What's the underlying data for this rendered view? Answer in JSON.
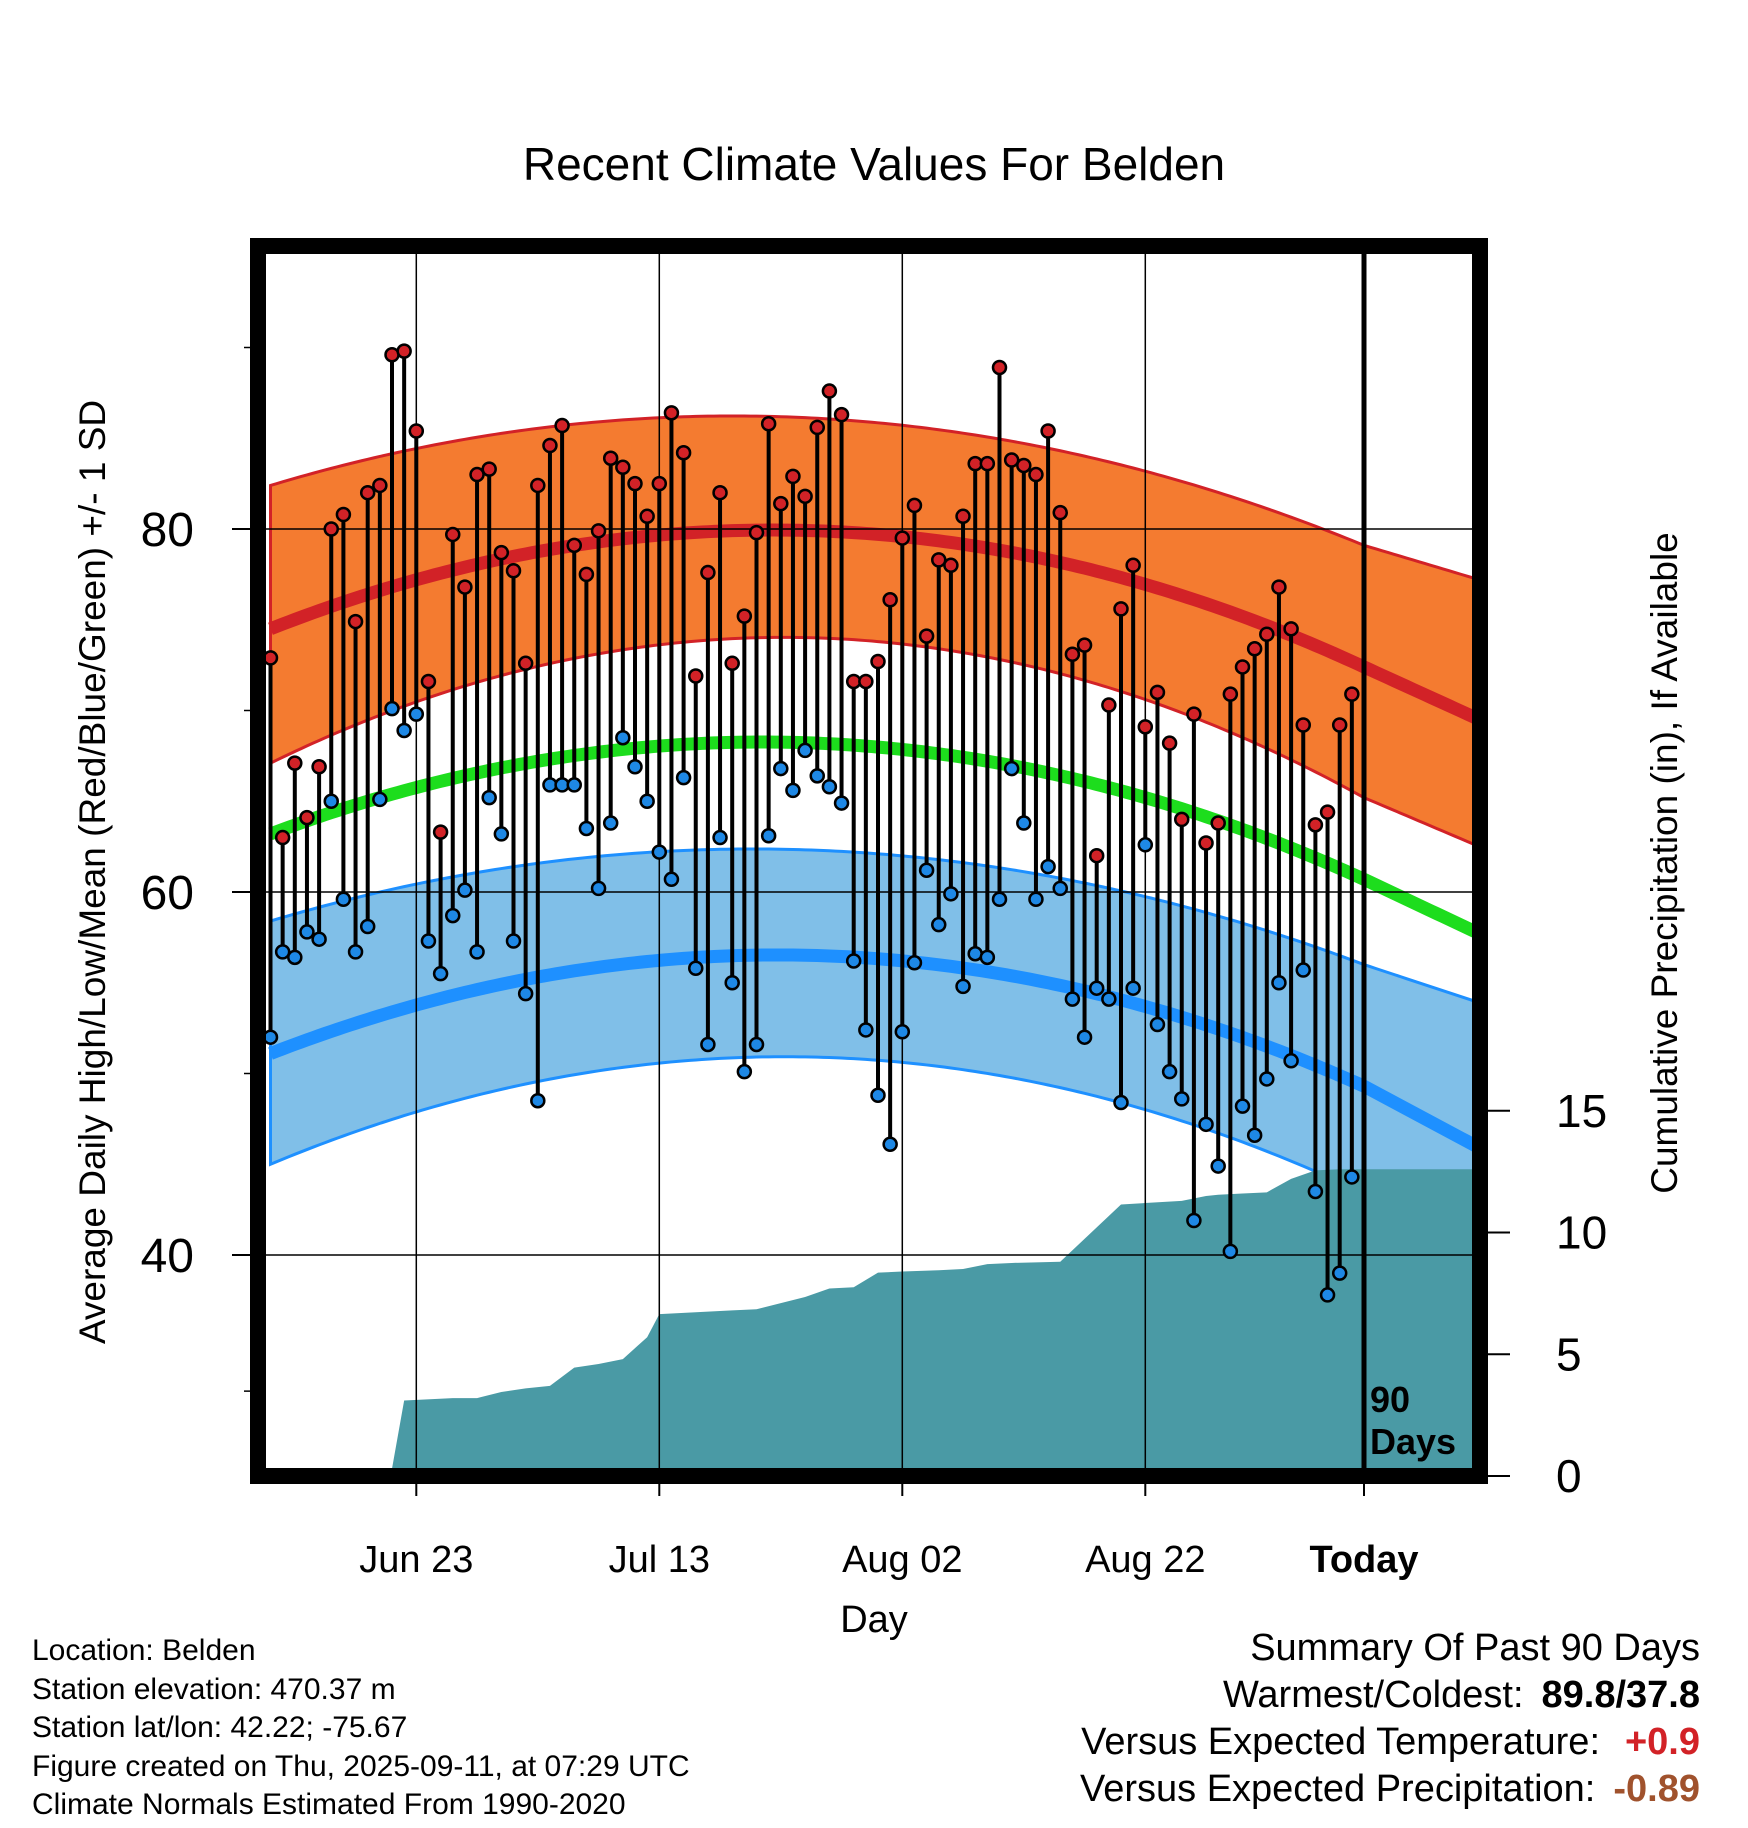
{
  "chart_data": {
    "type": "line",
    "title": "Recent Climate Values For Belden",
    "xlabel": "Day",
    "ylabel": "Average Daily High/Low/Mean (Red/Blue/Green) +/- 1 SD",
    "y2label": "Cumulative Precipitation (in), If Available",
    "x_ticks": [
      "Jun 23",
      "Jul 13",
      "Aug 02",
      "Aug 22",
      "Today"
    ],
    "x_range_days": [
      -90,
      9.5
    ],
    "ylim": [
      27,
      95
    ],
    "y_ticks": [
      40,
      60,
      80
    ],
    "y2lim": [
      0,
      30
    ],
    "y2_ticks": [
      0,
      5,
      10,
      15
    ],
    "grid": true,
    "today_marker": "90\nDays",
    "normals_daily_offsets": [
      -90,
      -45,
      0,
      9.5
    ],
    "normals": {
      "high_mean": [
        74.5,
        79.9,
        72.4,
        69.5
      ],
      "high_upper": [
        82.4,
        86.1,
        79.1,
        77.2
      ],
      "high_lower": [
        67.1,
        74.0,
        65.2,
        62.5
      ],
      "low_mean": [
        51.1,
        56.5,
        49.3,
        45.9
      ],
      "low_upper": [
        58.4,
        62.3,
        56.0,
        53.9
      ],
      "low_lower": [
        45.0,
        50.9,
        43.4,
        37.0
      ],
      "mean": [
        63.2,
        68.2,
        60.7,
        57.7
      ]
    },
    "daily_highs": [
      72.9,
      63.0,
      67.1,
      64.1,
      66.9,
      80.0,
      80.8,
      74.9,
      82.0,
      82.4,
      89.6,
      89.8,
      85.4,
      71.6,
      63.3,
      79.7,
      76.8,
      83.0,
      83.3,
      78.7,
      77.7,
      72.6,
      82.4,
      84.6,
      85.7,
      79.1,
      77.5,
      79.9,
      83.9,
      83.4,
      82.5,
      80.7,
      82.5,
      86.4,
      84.2,
      71.9,
      77.6,
      82.0,
      72.6,
      75.2,
      79.8,
      85.8,
      81.4,
      82.9,
      81.8,
      85.6,
      87.6,
      86.3,
      71.6,
      71.6,
      72.7,
      76.1,
      79.5,
      81.3,
      74.1,
      78.3,
      78.0,
      80.7,
      83.6,
      83.6,
      88.9,
      83.8,
      83.5,
      83.0,
      85.4,
      80.9,
      73.1,
      73.6,
      62.0,
      70.3,
      75.6,
      78.0,
      69.1,
      71.0,
      68.2,
      64.0,
      69.8,
      62.7,
      63.8,
      70.9,
      72.4,
      73.4,
      74.2,
      76.8,
      74.5,
      69.2,
      63.7,
      64.4,
      69.2,
      70.9
    ],
    "daily_lows": [
      52.0,
      56.7,
      56.4,
      57.8,
      57.4,
      65.0,
      59.6,
      56.7,
      58.1,
      65.1,
      70.1,
      68.9,
      69.8,
      57.3,
      55.5,
      58.7,
      60.1,
      56.7,
      65.2,
      63.2,
      57.3,
      54.4,
      48.5,
      65.9,
      65.9,
      65.9,
      63.5,
      60.2,
      63.8,
      68.5,
      66.9,
      65.0,
      62.2,
      60.7,
      66.3,
      55.8,
      51.6,
      63.0,
      55.0,
      50.1,
      51.6,
      63.1,
      66.8,
      65.6,
      67.8,
      66.4,
      65.8,
      64.9,
      56.2,
      52.4,
      48.8,
      46.1,
      52.3,
      56.1,
      61.2,
      58.2,
      59.9,
      54.8,
      56.6,
      56.4,
      59.6,
      66.8,
      63.8,
      59.6,
      61.4,
      60.2,
      54.1,
      52.0,
      54.7,
      54.1,
      48.4,
      54.7,
      62.6,
      52.7,
      50.1,
      48.6,
      41.9,
      47.2,
      44.9,
      40.2,
      48.2,
      46.6,
      49.7,
      55.0,
      50.7,
      55.7,
      43.5,
      37.8,
      39.0,
      44.3
    ],
    "precip_cumulative": {
      "days": [
        -90,
        -85,
        -83,
        -81,
        -80,
        -79,
        -75,
        -73,
        -71,
        -69,
        -67,
        -65,
        -63,
        -61,
        -59,
        -58,
        -56,
        -54,
        -52,
        -50,
        -48,
        -46,
        -44,
        -42,
        -40,
        -38,
        -35,
        -33,
        -31,
        -29,
        -25,
        -20,
        -15,
        -13,
        -12,
        -10,
        -8,
        -6,
        -4,
        -2,
        0,
        9.5
      ],
      "values": [
        0,
        0,
        0.1,
        0.15,
        0.3,
        3.1,
        3.2,
        3.2,
        3.45,
        3.6,
        3.7,
        4.45,
        4.6,
        4.8,
        5.7,
        6.65,
        6.7,
        6.75,
        6.8,
        6.85,
        7.1,
        7.35,
        7.7,
        7.75,
        8.35,
        8.4,
        8.45,
        8.5,
        8.7,
        8.75,
        8.8,
        11.15,
        11.3,
        11.5,
        11.55,
        11.6,
        11.65,
        12.2,
        12.55,
        12.6,
        12.6,
        12.6
      ]
    }
  },
  "colors": {
    "high_band": "#f47b30",
    "high_line": "#d22227",
    "low_band": "#80bfe8",
    "low_line": "#1e90ff",
    "mean_line": "#1ddd1d",
    "precip": "#4a9aa5",
    "high_point": "#d22227",
    "low_point": "#1e88e5",
    "temp_anomaly": "#d22227",
    "precip_anomaly": "#a0522d"
  },
  "location_info": {
    "location": "Location: Belden",
    "elevation": "Station elevation: 470.37 m",
    "latlon": "Station lat/lon: 42.22; -75.67",
    "created": "Figure created on Thu, 2025-09-11, at 07:29 UTC",
    "normals": "Climate Normals Estimated From 1990-2020"
  },
  "summary": {
    "title": "Summary Of Past 90 Days",
    "warmest_label": "Warmest/Coldest:",
    "warmest_value": "89.8/37.8",
    "temp_label": "Versus Expected Temperature:",
    "temp_value": "+0.9",
    "precip_label": "Versus Expected Precipitation:",
    "precip_value": "-0.89"
  }
}
